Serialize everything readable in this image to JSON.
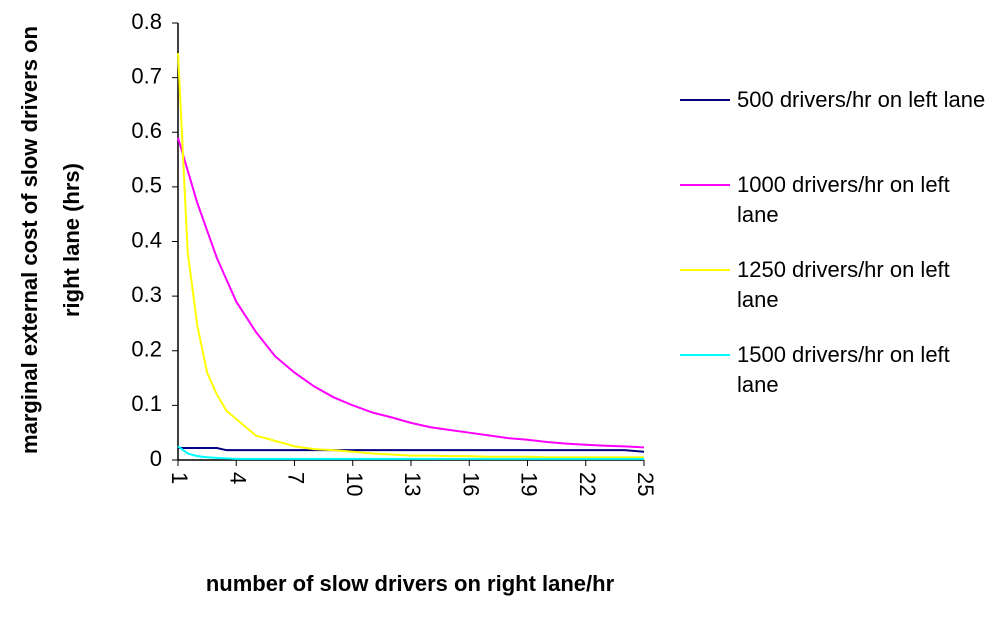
{
  "chart_data": {
    "type": "line",
    "x_label": "number of slow drivers on right lane/hr",
    "y_label": "marginal external cost of slow drivers on right lane (hrs)",
    "x": [
      1,
      1.5,
      2,
      2.5,
      3,
      3.5,
      4,
      5,
      6,
      7,
      8,
      9,
      10,
      11,
      12,
      13,
      14,
      15,
      16,
      17,
      18,
      19,
      20,
      21,
      22,
      23,
      24,
      25
    ],
    "xlim": [
      1,
      25
    ],
    "xticks": [
      1,
      4,
      7,
      10,
      13,
      16,
      19,
      22,
      25
    ],
    "ylim": [
      0,
      0.8
    ],
    "yticks": [
      0,
      0.1,
      0.2,
      0.3,
      0.4,
      0.5,
      0.6,
      0.7,
      0.8
    ],
    "legend": "right",
    "series": [
      {
        "name": "500 drivers/hr on left lane",
        "color": "#000080",
        "values": [
          0.022,
          0.022,
          0.022,
          0.022,
          0.022,
          0.018,
          0.018,
          0.018,
          0.018,
          0.018,
          0.018,
          0.018,
          0.018,
          0.018,
          0.018,
          0.018,
          0.018,
          0.018,
          0.018,
          0.018,
          0.018,
          0.018,
          0.018,
          0.018,
          0.018,
          0.018,
          0.018,
          0.015
        ]
      },
      {
        "name": "1000 drivers/hr on left lane",
        "color": "#ff00ff",
        "values": [
          0.59,
          0.53,
          0.47,
          0.42,
          0.37,
          0.33,
          0.29,
          0.235,
          0.19,
          0.16,
          0.135,
          0.115,
          0.1,
          0.087,
          0.078,
          0.068,
          0.06,
          0.055,
          0.05,
          0.045,
          0.04,
          0.037,
          0.033,
          0.03,
          0.028,
          0.026,
          0.025,
          0.023
        ]
      },
      {
        "name": "1250 drivers/hr on left lane",
        "color": "#ffff00",
        "values": [
          0.745,
          0.38,
          0.245,
          0.16,
          0.12,
          0.09,
          0.075,
          0.045,
          0.035,
          0.025,
          0.02,
          0.018,
          0.015,
          0.012,
          0.01,
          0.008,
          0.008,
          0.007,
          0.007,
          0.006,
          0.006,
          0.006,
          0.005,
          0.005,
          0.005,
          0.005,
          0.005,
          0.005
        ]
      },
      {
        "name": "1500 drivers/hr on left lane",
        "color": "#00ffff",
        "values": [
          0.025,
          0.012,
          0.007,
          0.005,
          0.004,
          0.003,
          0.002,
          0.002,
          0.002,
          0.002,
          0.002,
          0.002,
          0.002,
          0.002,
          0.002,
          0.002,
          0.002,
          0.002,
          0.002,
          0.002,
          0.002,
          0.002,
          0.002,
          0.002,
          0.002,
          0.002,
          0.002,
          0.002
        ]
      }
    ]
  }
}
